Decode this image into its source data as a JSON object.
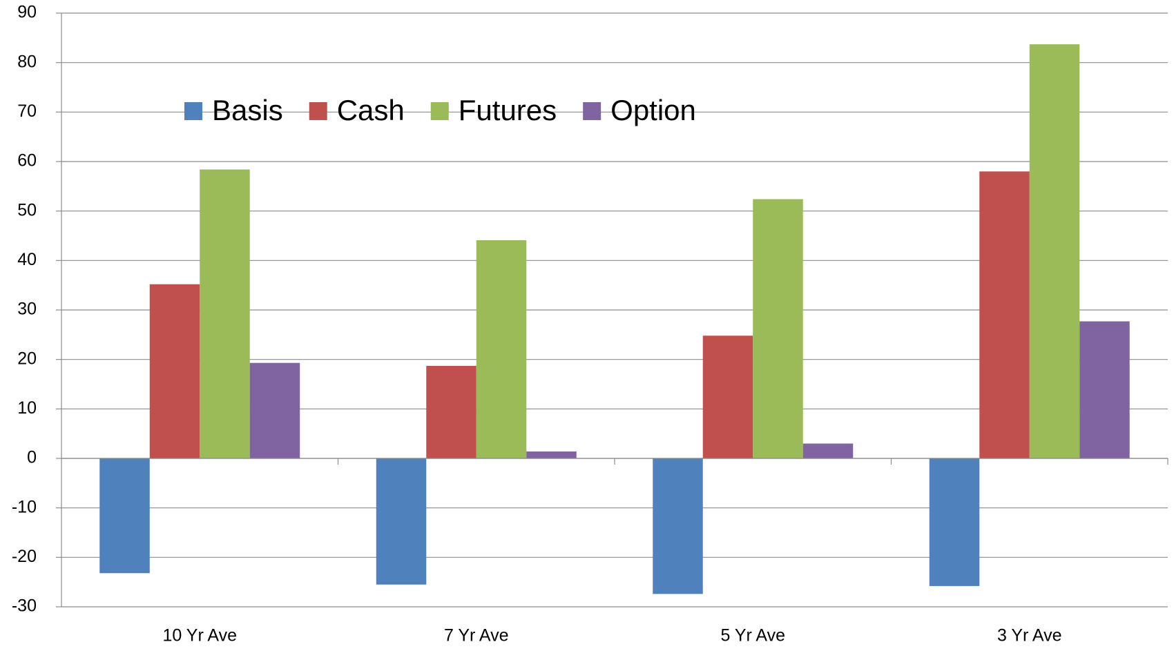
{
  "chart_data": {
    "type": "bar",
    "categories": [
      "10 Yr Ave",
      "7 Yr Ave",
      "5 Yr Ave",
      "3 Yr Ave"
    ],
    "series": [
      {
        "name": "Basis",
        "color": "#4f81bd",
        "values": [
          -23.2,
          -25.5,
          -27.4,
          -25.8
        ]
      },
      {
        "name": "Cash",
        "color": "#c0504d",
        "values": [
          35.2,
          18.7,
          24.8,
          58.0
        ]
      },
      {
        "name": "Futures",
        "color": "#9bbb59",
        "values": [
          58.4,
          44.1,
          52.4,
          83.7
        ]
      },
      {
        "name": "Option",
        "color": "#8064a2",
        "values": [
          19.3,
          1.4,
          3.0,
          27.7
        ]
      }
    ],
    "ylim": [
      -30,
      90
    ],
    "yticks": [
      -30,
      -20,
      -10,
      0,
      10,
      20,
      30,
      40,
      50,
      60,
      70,
      80,
      90
    ],
    "grid": true,
    "legend": "top-left"
  }
}
